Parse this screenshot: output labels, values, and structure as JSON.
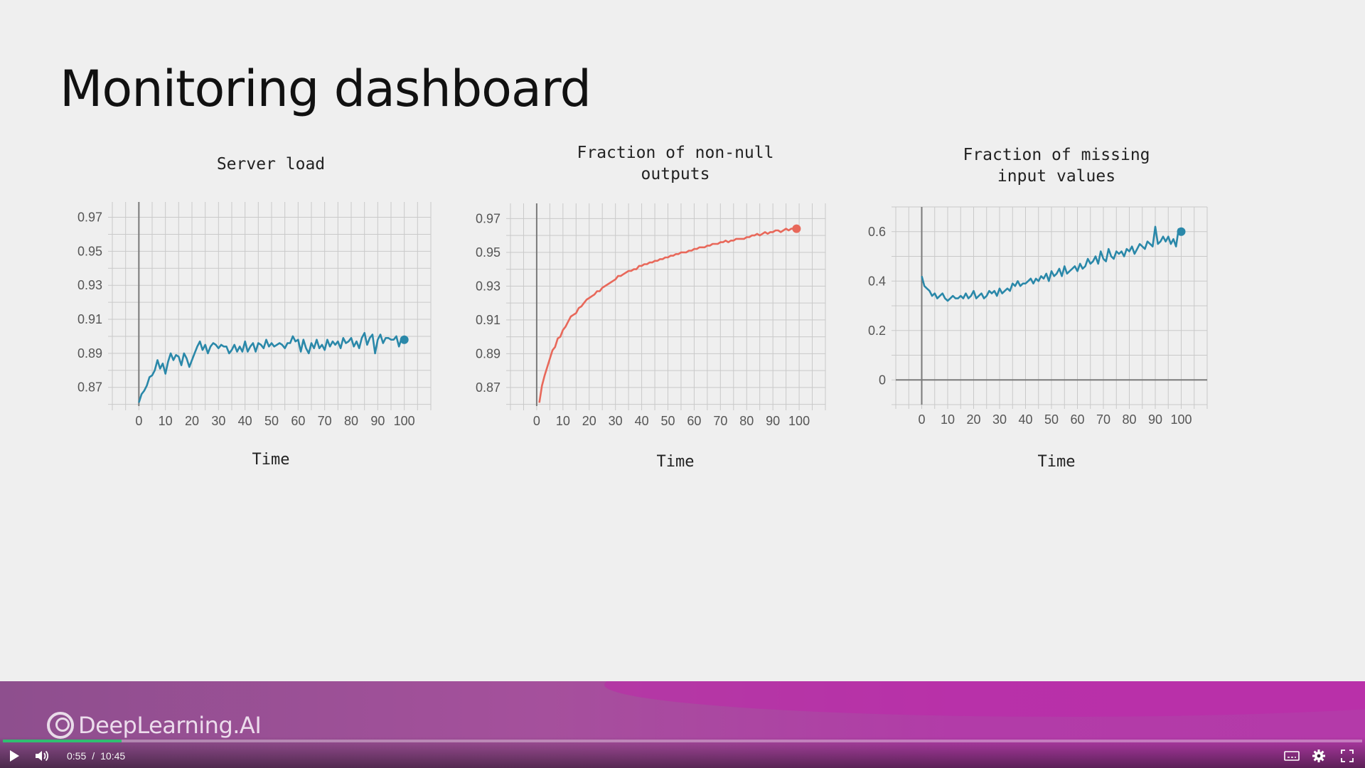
{
  "slide": {
    "title": "Monitoring dashboard"
  },
  "brand": {
    "name": "DeepLearning.AI"
  },
  "player": {
    "current_time": "0:55",
    "separator": "/",
    "duration": "10:45",
    "progress_fraction": 0.0873
  },
  "colors": {
    "teal": "#2a88a9",
    "salmon": "#e8685a"
  },
  "chart_data": [
    {
      "type": "line",
      "title": "Server load",
      "xlabel": "Time",
      "ylabel": "",
      "xlim": [
        -10,
        110
      ],
      "ylim": [
        0.859,
        0.979
      ],
      "xticks": [
        0,
        10,
        20,
        30,
        40,
        50,
        60,
        70,
        80,
        90,
        100
      ],
      "xtick_labels": [
        "0",
        "10",
        "20",
        "30",
        "40",
        "50",
        "60",
        "70",
        "80",
        "90",
        "100"
      ],
      "yticks": [
        0.87,
        0.89,
        0.91,
        0.93,
        0.95,
        0.97
      ],
      "ytick_labels": [
        "0.87",
        "0.89",
        "0.91",
        "0.93",
        "0.95",
        "0.97"
      ],
      "grid": true,
      "color": "#2a88a9",
      "x": [
        0,
        1,
        2,
        3,
        4,
        5,
        6,
        7,
        8,
        9,
        10,
        11,
        12,
        13,
        14,
        15,
        16,
        17,
        18,
        19,
        20,
        21,
        22,
        23,
        24,
        25,
        26,
        27,
        28,
        29,
        30,
        31,
        32,
        33,
        34,
        35,
        36,
        37,
        38,
        39,
        40,
        41,
        42,
        43,
        44,
        45,
        46,
        47,
        48,
        49,
        50,
        51,
        52,
        53,
        54,
        55,
        56,
        57,
        58,
        59,
        60,
        61,
        62,
        63,
        64,
        65,
        66,
        67,
        68,
        69,
        70,
        71,
        72,
        73,
        74,
        75,
        76,
        77,
        78,
        79,
        80,
        81,
        82,
        83,
        84,
        85,
        86,
        87,
        88,
        89,
        90,
        91,
        92,
        93,
        94,
        95,
        96,
        97,
        98,
        99,
        100
      ],
      "y": [
        0.861,
        0.866,
        0.868,
        0.871,
        0.876,
        0.877,
        0.88,
        0.886,
        0.881,
        0.884,
        0.878,
        0.885,
        0.89,
        0.886,
        0.889,
        0.888,
        0.883,
        0.89,
        0.887,
        0.882,
        0.886,
        0.89,
        0.894,
        0.897,
        0.892,
        0.895,
        0.89,
        0.894,
        0.896,
        0.895,
        0.893,
        0.895,
        0.894,
        0.894,
        0.89,
        0.892,
        0.895,
        0.891,
        0.894,
        0.891,
        0.897,
        0.891,
        0.894,
        0.896,
        0.891,
        0.896,
        0.895,
        0.893,
        0.898,
        0.894,
        0.896,
        0.894,
        0.895,
        0.896,
        0.895,
        0.893,
        0.896,
        0.896,
        0.9,
        0.897,
        0.898,
        0.891,
        0.898,
        0.893,
        0.89,
        0.896,
        0.893,
        0.898,
        0.893,
        0.895,
        0.892,
        0.898,
        0.894,
        0.897,
        0.895,
        0.897,
        0.893,
        0.899,
        0.896,
        0.897,
        0.899,
        0.894,
        0.897,
        0.893,
        0.899,
        0.902,
        0.895,
        0.899,
        0.901,
        0.89,
        0.898,
        0.901,
        0.896,
        0.899,
        0.899,
        0.898,
        0.898,
        0.9,
        0.894,
        0.899,
        0.898
      ]
    },
    {
      "type": "line",
      "title": "Fraction of non-null\noutputs",
      "xlabel": "Time",
      "ylabel": "",
      "xlim": [
        -10,
        110
      ],
      "ylim": [
        0.859,
        0.979
      ],
      "xticks": [
        0,
        10,
        20,
        30,
        40,
        50,
        60,
        70,
        80,
        90,
        100
      ],
      "xtick_labels": [
        "0",
        "10",
        "20",
        "30",
        "40",
        "50",
        "60",
        "70",
        "80",
        "90",
        "100"
      ],
      "yticks": [
        0.87,
        0.89,
        0.91,
        0.93,
        0.95,
        0.97
      ],
      "ytick_labels": [
        "0.87",
        "0.89",
        "0.91",
        "0.93",
        "0.95",
        "0.97"
      ],
      "grid": true,
      "color": "#e8685a",
      "x": [
        1,
        2,
        3,
        4,
        5,
        6,
        7,
        8,
        9,
        10,
        11,
        12,
        13,
        14,
        15,
        16,
        17,
        18,
        19,
        20,
        21,
        22,
        23,
        24,
        25,
        26,
        27,
        28,
        29,
        30,
        31,
        32,
        33,
        34,
        35,
        36,
        37,
        38,
        39,
        40,
        41,
        42,
        43,
        44,
        45,
        46,
        47,
        48,
        49,
        50,
        51,
        52,
        53,
        54,
        55,
        56,
        57,
        58,
        59,
        60,
        61,
        62,
        63,
        64,
        65,
        66,
        67,
        68,
        69,
        70,
        71,
        72,
        73,
        74,
        75,
        76,
        77,
        78,
        79,
        80,
        81,
        82,
        83,
        84,
        85,
        86,
        87,
        88,
        89,
        90,
        91,
        92,
        93,
        94,
        95,
        96,
        97,
        98,
        99
      ],
      "y": [
        0.861,
        0.871,
        0.877,
        0.882,
        0.887,
        0.892,
        0.894,
        0.899,
        0.9,
        0.904,
        0.906,
        0.909,
        0.912,
        0.913,
        0.914,
        0.917,
        0.918,
        0.92,
        0.922,
        0.923,
        0.924,
        0.925,
        0.927,
        0.927,
        0.929,
        0.93,
        0.931,
        0.932,
        0.933,
        0.934,
        0.936,
        0.936,
        0.937,
        0.938,
        0.939,
        0.939,
        0.94,
        0.94,
        0.942,
        0.942,
        0.943,
        0.943,
        0.944,
        0.944,
        0.945,
        0.945,
        0.946,
        0.946,
        0.947,
        0.947,
        0.948,
        0.948,
        0.949,
        0.949,
        0.95,
        0.95,
        0.95,
        0.951,
        0.951,
        0.952,
        0.952,
        0.953,
        0.953,
        0.953,
        0.954,
        0.954,
        0.955,
        0.955,
        0.955,
        0.956,
        0.956,
        0.957,
        0.956,
        0.957,
        0.957,
        0.958,
        0.958,
        0.958,
        0.958,
        0.959,
        0.959,
        0.96,
        0.96,
        0.961,
        0.96,
        0.961,
        0.962,
        0.961,
        0.962,
        0.962,
        0.963,
        0.963,
        0.962,
        0.963,
        0.964,
        0.963,
        0.964,
        0.964,
        0.964
      ]
    },
    {
      "type": "line",
      "title": "Fraction of missing\ninput values",
      "xlabel": "Time",
      "ylabel": "",
      "xlim": [
        -10,
        110
      ],
      "ylim": [
        -0.1,
        0.7
      ],
      "xticks": [
        0,
        10,
        20,
        30,
        40,
        50,
        60,
        70,
        80,
        90,
        100
      ],
      "xtick_labels": [
        "0",
        "10",
        "20",
        "30",
        "40",
        "50",
        "60",
        "70",
        "80",
        "90",
        "100"
      ],
      "yticks": [
        0,
        0.2,
        0.4,
        0.6
      ],
      "ytick_labels": [
        "0",
        "0.2",
        "0.4",
        "0.6"
      ],
      "grid": true,
      "color": "#2a88a9",
      "x": [
        0,
        1,
        2,
        3,
        4,
        5,
        6,
        7,
        8,
        9,
        10,
        11,
        12,
        13,
        14,
        15,
        16,
        17,
        18,
        19,
        20,
        21,
        22,
        23,
        24,
        25,
        26,
        27,
        28,
        29,
        30,
        31,
        32,
        33,
        34,
        35,
        36,
        37,
        38,
        39,
        40,
        41,
        42,
        43,
        44,
        45,
        46,
        47,
        48,
        49,
        50,
        51,
        52,
        53,
        54,
        55,
        56,
        57,
        58,
        59,
        60,
        61,
        62,
        63,
        64,
        65,
        66,
        67,
        68,
        69,
        70,
        71,
        72,
        73,
        74,
        75,
        76,
        77,
        78,
        79,
        80,
        81,
        82,
        83,
        84,
        85,
        86,
        87,
        88,
        89,
        90,
        91,
        92,
        93,
        94,
        95,
        96,
        97,
        98,
        99,
        100
      ],
      "y": [
        0.42,
        0.38,
        0.37,
        0.36,
        0.34,
        0.35,
        0.33,
        0.34,
        0.35,
        0.33,
        0.32,
        0.33,
        0.34,
        0.33,
        0.33,
        0.34,
        0.33,
        0.35,
        0.33,
        0.34,
        0.36,
        0.33,
        0.34,
        0.35,
        0.33,
        0.34,
        0.36,
        0.35,
        0.36,
        0.34,
        0.37,
        0.35,
        0.36,
        0.37,
        0.36,
        0.39,
        0.38,
        0.4,
        0.38,
        0.39,
        0.39,
        0.4,
        0.41,
        0.39,
        0.41,
        0.4,
        0.42,
        0.41,
        0.43,
        0.4,
        0.44,
        0.42,
        0.43,
        0.45,
        0.42,
        0.46,
        0.43,
        0.44,
        0.45,
        0.46,
        0.44,
        0.47,
        0.45,
        0.46,
        0.49,
        0.47,
        0.48,
        0.5,
        0.47,
        0.52,
        0.49,
        0.48,
        0.53,
        0.5,
        0.49,
        0.52,
        0.51,
        0.52,
        0.5,
        0.53,
        0.52,
        0.54,
        0.51,
        0.53,
        0.55,
        0.54,
        0.53,
        0.56,
        0.55,
        0.54,
        0.62,
        0.55,
        0.56,
        0.58,
        0.56,
        0.58,
        0.55,
        0.57,
        0.54,
        0.61,
        0.6
      ]
    }
  ]
}
